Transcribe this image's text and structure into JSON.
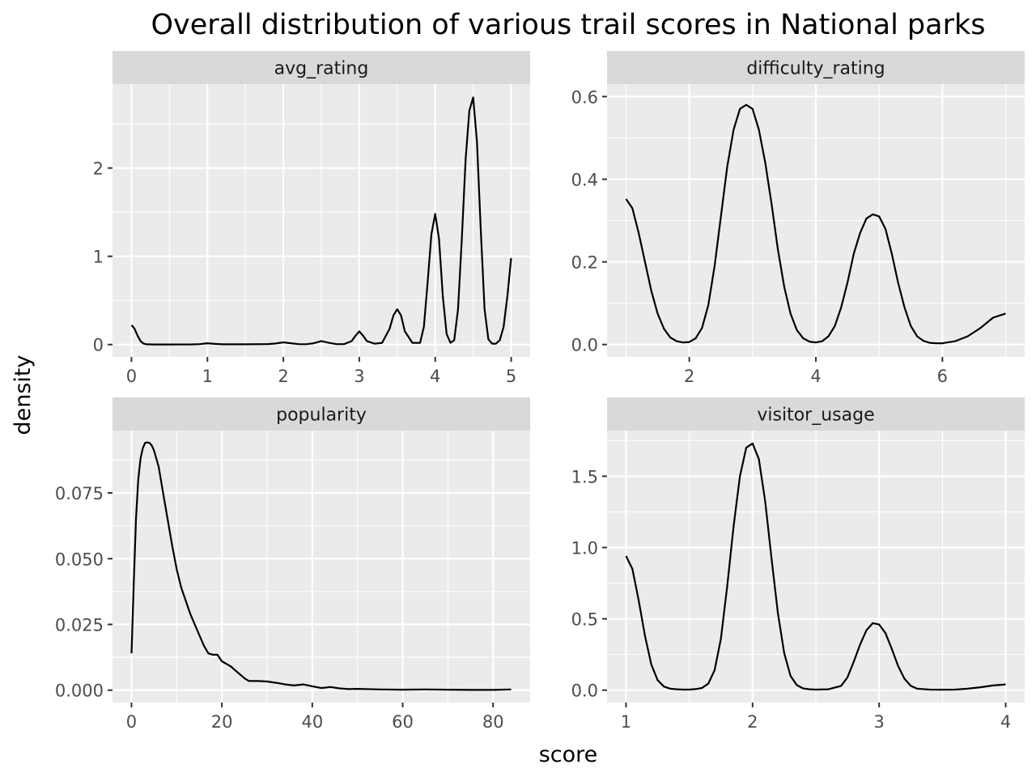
{
  "chart_data": {
    "type": "line",
    "title": "Overall distribution of various trail scores in National parks",
    "xlabel": "score",
    "ylabel": "density",
    "grid": true,
    "facets": [
      {
        "label": "avg_rating",
        "xlim": [
          -0.25,
          5.25
        ],
        "ylim": [
          -0.14,
          2.95
        ],
        "x_ticks": [
          {
            "value": 0,
            "label": "0"
          },
          {
            "value": 1,
            "label": "1"
          },
          {
            "value": 2,
            "label": "2"
          },
          {
            "value": 3,
            "label": "3"
          },
          {
            "value": 4,
            "label": "4"
          },
          {
            "value": 5,
            "label": "5"
          }
        ],
        "y_ticks": [
          {
            "value": 0,
            "label": "0"
          },
          {
            "value": 1,
            "label": "1"
          },
          {
            "value": 2,
            "label": "2"
          }
        ],
        "x": [
          0,
          0.04,
          0.08,
          0.12,
          0.16,
          0.2,
          0.3,
          0.5,
          0.8,
          0.9,
          1.0,
          1.1,
          1.2,
          1.5,
          1.8,
          1.9,
          2.0,
          2.1,
          2.2,
          2.3,
          2.4,
          2.5,
          2.6,
          2.7,
          2.8,
          2.9,
          2.95,
          3.0,
          3.05,
          3.1,
          3.2,
          3.3,
          3.4,
          3.45,
          3.5,
          3.55,
          3.6,
          3.7,
          3.8,
          3.85,
          3.9,
          3.95,
          4.0,
          4.05,
          4.1,
          4.15,
          4.2,
          4.25,
          4.3,
          4.35,
          4.4,
          4.45,
          4.5,
          4.55,
          4.6,
          4.65,
          4.7,
          4.75,
          4.8,
          4.85,
          4.9,
          4.95,
          5.0
        ],
        "y": [
          0.22,
          0.18,
          0.1,
          0.04,
          0.01,
          0.003,
          0.001,
          0.001,
          0.002,
          0.005,
          0.015,
          0.008,
          0.003,
          0.003,
          0.006,
          0.012,
          0.025,
          0.015,
          0.005,
          0.004,
          0.015,
          0.04,
          0.02,
          0.005,
          0.005,
          0.04,
          0.1,
          0.15,
          0.1,
          0.04,
          0.01,
          0.02,
          0.18,
          0.33,
          0.4,
          0.33,
          0.15,
          0.02,
          0.02,
          0.2,
          0.7,
          1.25,
          1.48,
          1.2,
          0.55,
          0.12,
          0.02,
          0.05,
          0.4,
          1.2,
          2.1,
          2.65,
          2.8,
          2.3,
          1.3,
          0.4,
          0.06,
          0.01,
          0.01,
          0.05,
          0.2,
          0.55,
          0.98
        ]
      },
      {
        "label": "difficulty_rating",
        "xlim": [
          0.7,
          7.3
        ],
        "ylim": [
          -0.03,
          0.63
        ],
        "x_ticks": [
          {
            "value": 2,
            "label": "2"
          },
          {
            "value": 4,
            "label": "4"
          },
          {
            "value": 6,
            "label": "6"
          }
        ],
        "y_ticks": [
          {
            "value": 0,
            "label": "0.0"
          },
          {
            "value": 0.2,
            "label": "0.2"
          },
          {
            "value": 0.4,
            "label": "0.4"
          },
          {
            "value": 0.6,
            "label": "0.6"
          }
        ],
        "x": [
          1.0,
          1.1,
          1.2,
          1.3,
          1.4,
          1.5,
          1.6,
          1.7,
          1.8,
          1.9,
          2.0,
          2.1,
          2.2,
          2.3,
          2.4,
          2.5,
          2.6,
          2.7,
          2.8,
          2.9,
          3.0,
          3.1,
          3.2,
          3.3,
          3.4,
          3.5,
          3.6,
          3.7,
          3.8,
          3.9,
          4.0,
          4.1,
          4.2,
          4.3,
          4.4,
          4.5,
          4.6,
          4.7,
          4.8,
          4.9,
          5.0,
          5.1,
          5.2,
          5.3,
          5.4,
          5.5,
          5.6,
          5.7,
          5.8,
          5.9,
          6.0,
          6.2,
          6.4,
          6.6,
          6.8,
          7.0
        ],
        "y": [
          0.352,
          0.33,
          0.27,
          0.2,
          0.13,
          0.075,
          0.038,
          0.017,
          0.008,
          0.005,
          0.006,
          0.015,
          0.04,
          0.095,
          0.19,
          0.31,
          0.43,
          0.52,
          0.57,
          0.58,
          0.57,
          0.52,
          0.44,
          0.34,
          0.23,
          0.14,
          0.075,
          0.035,
          0.015,
          0.007,
          0.005,
          0.008,
          0.02,
          0.045,
          0.09,
          0.15,
          0.22,
          0.27,
          0.305,
          0.315,
          0.31,
          0.28,
          0.22,
          0.15,
          0.09,
          0.045,
          0.02,
          0.009,
          0.004,
          0.003,
          0.003,
          0.008,
          0.02,
          0.04,
          0.065,
          0.075
        ]
      },
      {
        "label": "popularity",
        "xlim": [
          -4.2,
          88.2
        ],
        "ylim": [
          -0.0047,
          0.0987
        ],
        "x_ticks": [
          {
            "value": 0,
            "label": "0"
          },
          {
            "value": 20,
            "label": "20"
          },
          {
            "value": 40,
            "label": "40"
          },
          {
            "value": 60,
            "label": "60"
          },
          {
            "value": 80,
            "label": "80"
          }
        ],
        "y_ticks": [
          {
            "value": 0,
            "label": "0.000"
          },
          {
            "value": 0.025,
            "label": "0.025"
          },
          {
            "value": 0.05,
            "label": "0.050"
          },
          {
            "value": 0.075,
            "label": "0.075"
          }
        ],
        "x": [
          0,
          0.5,
          1,
          1.5,
          2,
          2.5,
          3,
          3.5,
          4,
          4.5,
          5,
          6,
          7,
          8,
          9,
          10,
          11,
          12,
          13,
          14,
          15,
          16,
          17,
          18,
          19,
          20,
          21,
          22,
          23,
          24,
          25,
          26,
          27,
          28,
          30,
          32,
          34,
          36,
          38,
          40,
          42,
          44,
          46,
          48,
          50,
          55,
          60,
          65,
          70,
          75,
          80,
          84
        ],
        "y": [
          0.014,
          0.04,
          0.065,
          0.08,
          0.088,
          0.092,
          0.094,
          0.0942,
          0.094,
          0.093,
          0.091,
          0.085,
          0.075,
          0.065,
          0.055,
          0.046,
          0.039,
          0.034,
          0.029,
          0.025,
          0.021,
          0.017,
          0.014,
          0.0135,
          0.0135,
          0.011,
          0.01,
          0.009,
          0.0075,
          0.006,
          0.0045,
          0.0035,
          0.0035,
          0.0035,
          0.0033,
          0.0028,
          0.0022,
          0.0018,
          0.0022,
          0.0015,
          0.0008,
          0.0012,
          0.0007,
          0.0004,
          0.0005,
          0.0003,
          0.0002,
          0.0003,
          0.0002,
          0.0001,
          0.0001,
          0.0003
        ]
      },
      {
        "label": "visitor_usage",
        "xlim": [
          0.85,
          4.15
        ],
        "ylim": [
          -0.087,
          1.82
        ],
        "x_ticks": [
          {
            "value": 1,
            "label": "1"
          },
          {
            "value": 2,
            "label": "2"
          },
          {
            "value": 3,
            "label": "3"
          },
          {
            "value": 4,
            "label": "4"
          }
        ],
        "y_ticks": [
          {
            "value": 0,
            "label": "0.0"
          },
          {
            "value": 0.5,
            "label": "0.5"
          },
          {
            "value": 1.0,
            "label": "1.0"
          },
          {
            "value": 1.5,
            "label": "1.5"
          }
        ],
        "x": [
          1.0,
          1.05,
          1.1,
          1.15,
          1.2,
          1.25,
          1.3,
          1.35,
          1.4,
          1.45,
          1.5,
          1.55,
          1.6,
          1.65,
          1.7,
          1.75,
          1.8,
          1.85,
          1.9,
          1.95,
          2.0,
          2.05,
          2.1,
          2.15,
          2.2,
          2.25,
          2.3,
          2.35,
          2.4,
          2.45,
          2.5,
          2.6,
          2.7,
          2.75,
          2.8,
          2.85,
          2.9,
          2.95,
          3.0,
          3.05,
          3.1,
          3.15,
          3.2,
          3.25,
          3.3,
          3.4,
          3.5,
          3.6,
          3.7,
          3.8,
          3.9,
          4.0
        ],
        "y": [
          0.94,
          0.85,
          0.63,
          0.38,
          0.18,
          0.07,
          0.025,
          0.01,
          0.006,
          0.004,
          0.004,
          0.007,
          0.015,
          0.045,
          0.14,
          0.36,
          0.73,
          1.15,
          1.5,
          1.7,
          1.73,
          1.62,
          1.32,
          0.92,
          0.54,
          0.26,
          0.1,
          0.035,
          0.012,
          0.006,
          0.004,
          0.006,
          0.03,
          0.09,
          0.2,
          0.32,
          0.42,
          0.47,
          0.46,
          0.4,
          0.29,
          0.17,
          0.08,
          0.03,
          0.01,
          0.004,
          0.003,
          0.004,
          0.01,
          0.02,
          0.033,
          0.04
        ]
      }
    ]
  }
}
